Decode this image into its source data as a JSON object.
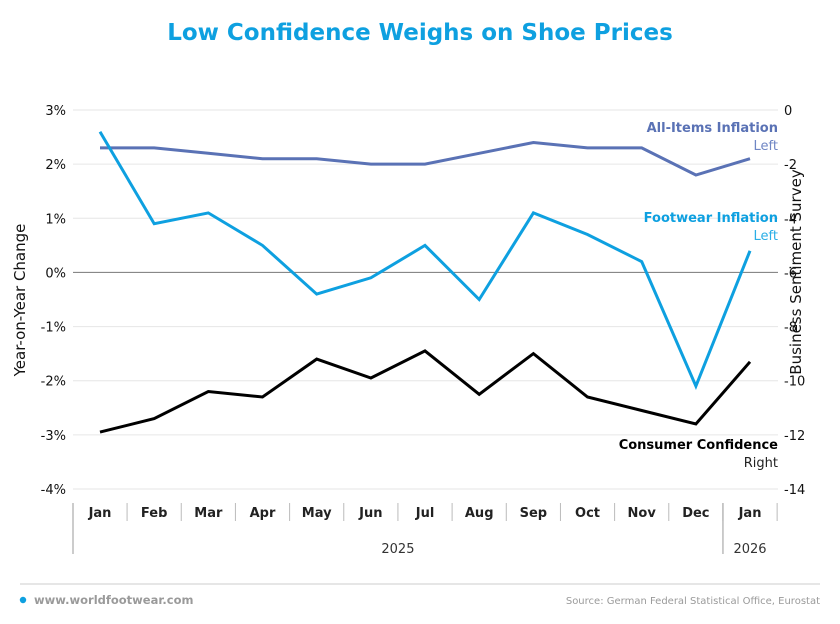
{
  "chart_data": {
    "type": "line",
    "title": "Low Confidence Weighs on Shoe Prices",
    "categories": [
      "Jan",
      "Feb",
      "Mar",
      "Apr",
      "May",
      "Jun",
      "Jul",
      "Aug",
      "Sep",
      "Oct",
      "Nov",
      "Dec",
      "Jan"
    ],
    "year_groups": [
      {
        "label": "2025",
        "start": 0,
        "end": 11
      },
      {
        "label": "2026",
        "start": 12,
        "end": 12
      }
    ],
    "y_left": {
      "label": "Year-on-Year Change",
      "range": [
        -4,
        3
      ],
      "ticks": [
        3,
        2,
        1,
        0,
        -1,
        -2,
        -3,
        -4
      ],
      "tick_labels": [
        "3%",
        "2%",
        "1%",
        "0%",
        "-1%",
        "-2%",
        "-3%",
        "-4%"
      ]
    },
    "y_right": {
      "label": "Business Sentiment Survey",
      "range": [
        -14,
        0
      ],
      "ticks": [
        0,
        -2,
        -4,
        -6,
        -8,
        -10,
        -12,
        -14
      ],
      "tick_labels": [
        "0",
        "-2",
        "-4",
        "-6",
        "-8",
        "-10",
        "-12",
        "-14"
      ]
    },
    "grid": true,
    "series": [
      {
        "name": "All-Items Inflation",
        "axis_label": "Left",
        "axis": "left",
        "color": "#5a72b5",
        "values": [
          2.3,
          2.3,
          2.2,
          2.1,
          2.1,
          2.0,
          2.0,
          2.2,
          2.4,
          2.3,
          2.3,
          1.8,
          2.1
        ]
      },
      {
        "name": "Footwear Inflation",
        "axis_label": "Left",
        "axis": "left",
        "color": "#0ea0e0",
        "values": [
          2.6,
          0.9,
          1.1,
          0.5,
          -0.4,
          -0.1,
          0.5,
          -0.5,
          1.1,
          0.7,
          0.2,
          -2.1,
          0.4
        ]
      },
      {
        "name": "Consumer Confidence",
        "axis_label": "Right",
        "axis": "right",
        "color": "#000000",
        "values": [
          -11.9,
          -11.4,
          -10.4,
          -10.6,
          -9.2,
          -9.9,
          -8.9,
          -10.5,
          -9.0,
          -10.6,
          -11.1,
          -11.6,
          -9.3
        ]
      }
    ],
    "legend_placement": "inline-right"
  },
  "footer": {
    "website": "www.worldfootwear.com",
    "source": "Source: German Federal Statistical Office, Eurostat",
    "accent": "#0ea0e0"
  }
}
